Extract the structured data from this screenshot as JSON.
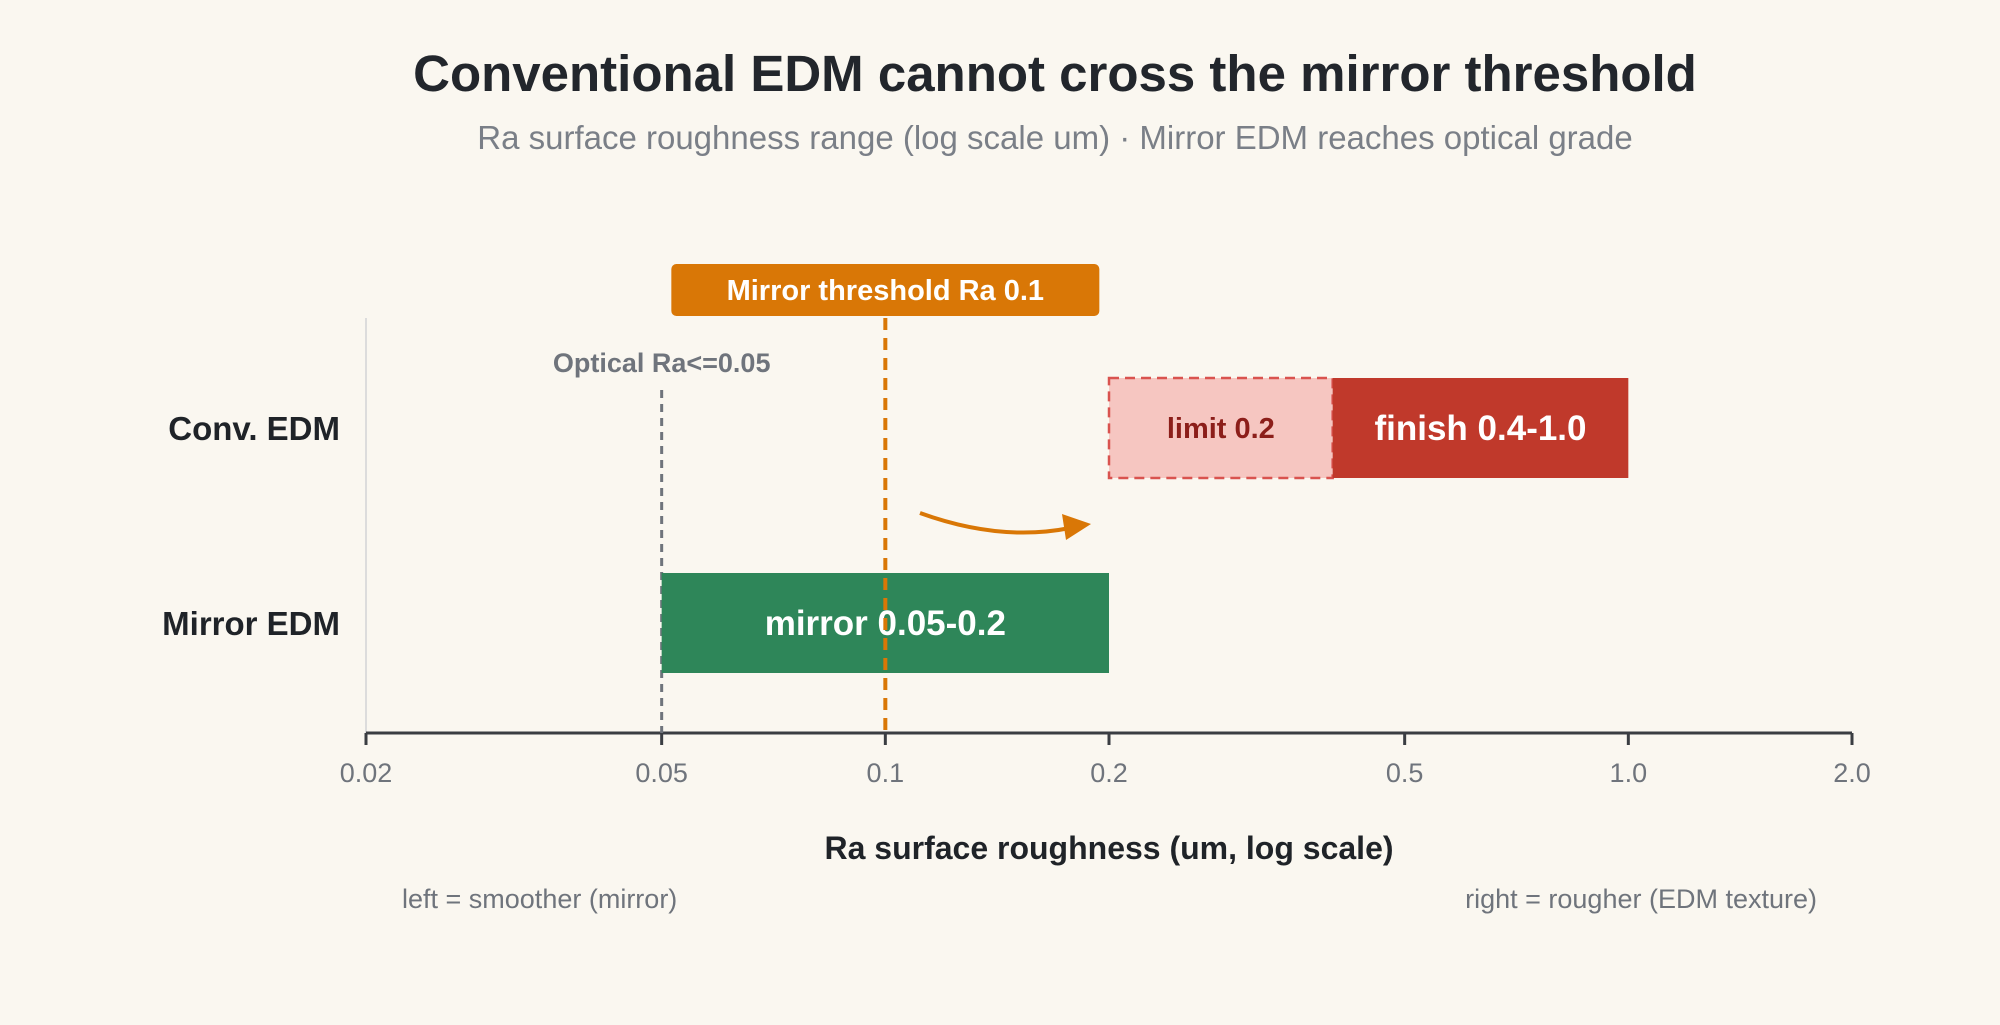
{
  "title": "Conventional EDM cannot cross the mirror threshold",
  "subtitle": "Ra surface roughness range (log scale um) · Mirror EDM reaches optical grade",
  "chart_data": {
    "type": "bar",
    "orientation": "horizontal-range",
    "x_scale": "log",
    "xlim": [
      0.02,
      2.0
    ],
    "xticks": [
      0.02,
      0.05,
      0.1,
      0.2,
      0.5,
      1.0,
      2.0
    ],
    "xtick_labels": [
      "0.02",
      "0.05",
      "0.1",
      "0.2",
      "0.5",
      "1.0",
      "2.0"
    ],
    "xlabel": "Ra surface roughness (um, log scale)",
    "x_left_note": "left = smoother (mirror)",
    "x_right_note": "right = rougher (EDM texture)",
    "rows": [
      "Conv. EDM",
      "Mirror EDM"
    ],
    "ranges": [
      {
        "row": "Conv. EDM",
        "start": 0.2,
        "end": 0.4,
        "label": "limit 0.2",
        "style": "dashed-light",
        "color": "#f6c6c1"
      },
      {
        "row": "Conv. EDM",
        "start": 0.4,
        "end": 1.0,
        "label": "finish 0.4-1.0",
        "style": "solid",
        "color": "#c0392b"
      },
      {
        "row": "Mirror EDM",
        "start": 0.05,
        "end": 0.2,
        "label": "mirror 0.05-0.2",
        "style": "solid",
        "color": "#2e8659"
      }
    ],
    "reference_lines": [
      {
        "x": 0.05,
        "label": "Optical Ra<=0.05",
        "color": "#6f747c"
      },
      {
        "x": 0.1,
        "label": "Mirror threshold Ra 0.1",
        "color": "#d97706"
      }
    ],
    "grid": false,
    "colors": {
      "background": "#faf7f0",
      "axis": "#3a3d42",
      "threshold": "#d97706",
      "conv_limit_fill": "#f6c6c1",
      "conv_limit_border": "#d9534f",
      "conv_finish": "#c0392b",
      "mirror": "#2e8659"
    }
  }
}
